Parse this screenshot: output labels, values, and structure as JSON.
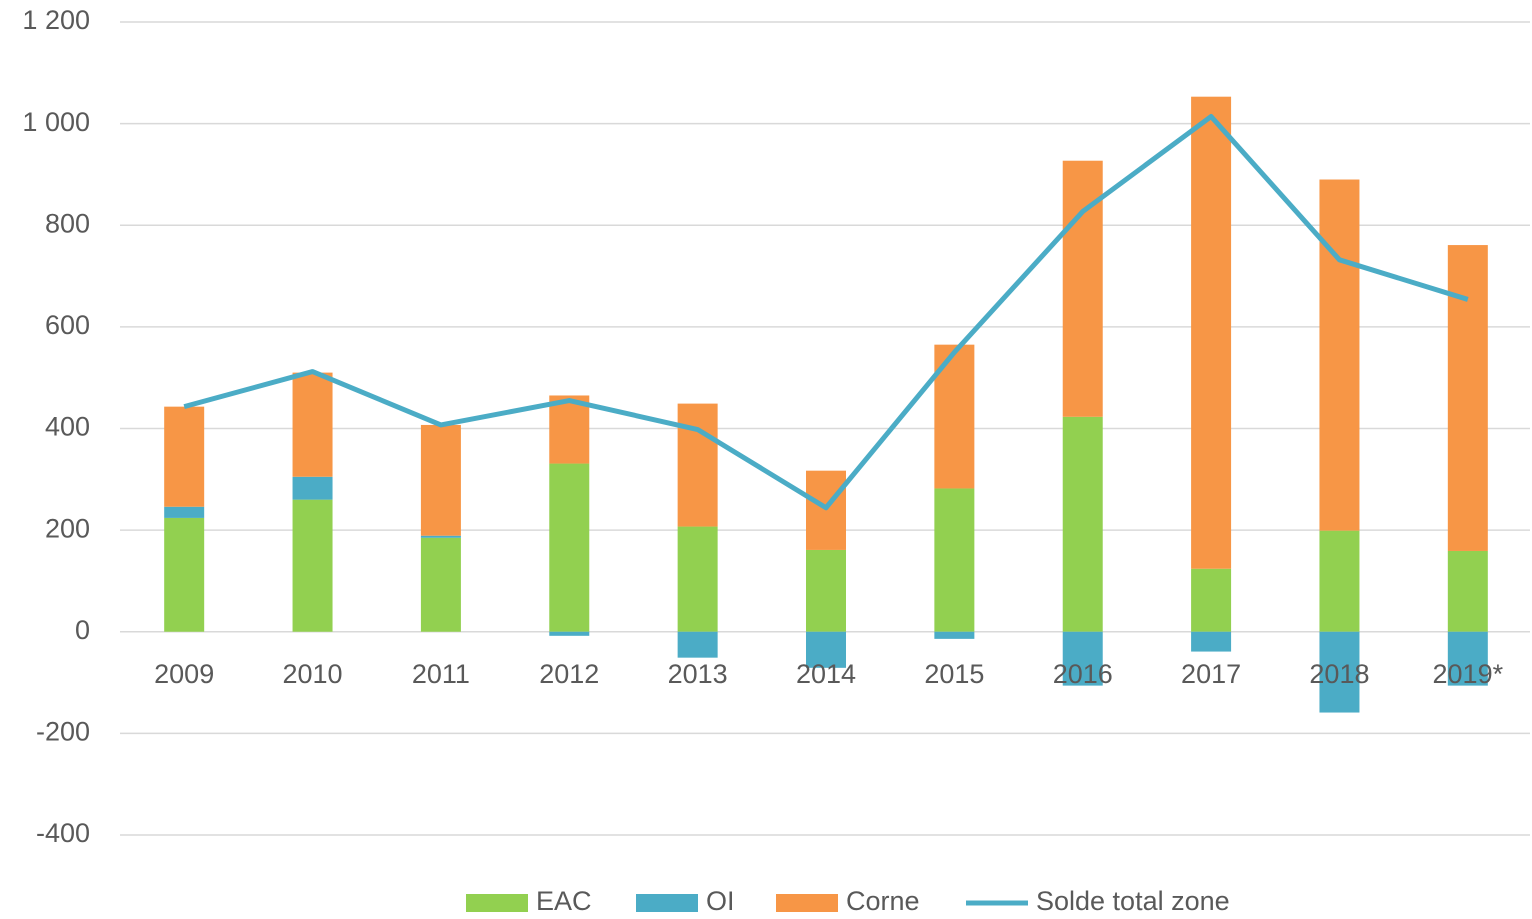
{
  "chart_data": {
    "type": "bar",
    "stacked": true,
    "categories": [
      "2009",
      "2010",
      "2011",
      "2012",
      "2013",
      "2014",
      "2015",
      "2016",
      "2017",
      "2018",
      "2019*"
    ],
    "series": [
      {
        "name": "EAC",
        "color": "#92d050",
        "values": [
          224,
          260,
          185,
          331,
          207,
          161,
          282,
          423,
          124,
          199,
          159
        ]
      },
      {
        "name": "OI",
        "color": "#4bacc6",
        "values": [
          22,
          45,
          4,
          -8,
          -51,
          -71,
          -14,
          -106,
          -39,
          -159,
          -106
        ]
      },
      {
        "name": "Corne",
        "color": "#f79646",
        "values": [
          197,
          205,
          218,
          134,
          242,
          156,
          283,
          504,
          929,
          691,
          602
        ]
      },
      {
        "name": "Solde total zone",
        "color": "#4bacc6",
        "type": "line",
        "values": [
          443,
          512,
          407,
          455,
          398,
          244,
          550,
          827,
          1014,
          732,
          654
        ]
      }
    ],
    "ylim": [
      -400,
      1200
    ],
    "yticks": [
      -400,
      -200,
      0,
      200,
      400,
      600,
      800,
      {
        "value": 1000,
        "label": "1 000"
      },
      {
        "value": 1200,
        "label": "1 200"
      }
    ],
    "grid": true,
    "legend": "bottom"
  }
}
